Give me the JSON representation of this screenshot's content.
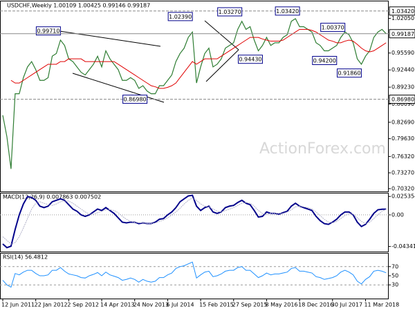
{
  "watermark": "ActionForex.com",
  "chart_data": [
    {
      "type": "line",
      "title": "USDCHF,Weekly 1.00109 1.00425 0.99146 0.99187",
      "categories": [
        "12 Jun 2011",
        null,
        null,
        null,
        null,
        null,
        null,
        null,
        "22 Jan 2012",
        null,
        null,
        null,
        null,
        null,
        null,
        null,
        "2 Sep 2012",
        null,
        null,
        null,
        null,
        null,
        null,
        null,
        "14 Apr 2013",
        null,
        null,
        null,
        null,
        null,
        null,
        null,
        "24 Nov 2013",
        null,
        null,
        null,
        null,
        null,
        null,
        null,
        "6 Jul 2014",
        null,
        null,
        null,
        null,
        null,
        null,
        null,
        "15 Feb 2015",
        null,
        null,
        null,
        null,
        null,
        null,
        null,
        "27 Sep 2015",
        null,
        null,
        null,
        null,
        null,
        null,
        null,
        "8 May 2016",
        null,
        null,
        null,
        null,
        null,
        null,
        null,
        "18 Dec 2016",
        null,
        null,
        null,
        null,
        null,
        null,
        null,
        "30 Jul 2017",
        null,
        null,
        null,
        null,
        null,
        null,
        null,
        "11 Mar 2018",
        null,
        null,
        null,
        null,
        null
      ],
      "series": [
        {
          "name": "USDCHF",
          "color": "#2e7d32",
          "values": [
            0.84,
            0.8,
            0.74,
            0.88,
            0.88,
            0.91,
            0.93,
            0.94,
            0.925,
            0.905,
            0.905,
            0.91,
            0.95,
            0.955,
            0.98,
            0.97,
            0.945,
            0.94,
            0.93,
            0.92,
            0.915,
            0.925,
            0.935,
            0.95,
            0.93,
            0.96,
            0.945,
            0.935,
            0.925,
            0.905,
            0.905,
            0.91,
            0.905,
            0.89,
            0.895,
            0.885,
            0.88,
            0.88,
            0.895,
            0.895,
            0.905,
            0.915,
            0.94,
            0.955,
            0.965,
            0.985,
            0.995,
            0.9,
            0.93,
            0.955,
            0.965,
            0.93,
            0.935,
            0.945,
            0.965,
            0.97,
            0.975,
            1.0,
            1.015,
            1.0,
            1.005,
            0.98,
            0.96,
            0.97,
            0.985,
            0.97,
            0.975,
            0.975,
            0.985,
            0.99,
            1.015,
            1.02,
            1.005,
            1.005,
            1.0,
            0.995,
            0.975,
            0.97,
            0.96,
            0.96,
            0.965,
            0.97,
            0.985,
            0.995,
            0.99,
            0.975,
            0.945,
            0.935,
            0.95,
            0.96,
            0.985,
            0.995,
            1.0,
            0.99187
          ]
        },
        {
          "name": "MA",
          "color": "#e00000",
          "values": [
            null,
            null,
            0.905,
            0.9,
            0.9,
            0.905,
            0.91,
            0.915,
            0.92,
            0.925,
            0.93,
            0.935,
            0.935,
            0.935,
            0.94,
            0.94,
            0.945,
            0.945,
            0.945,
            0.945,
            0.94,
            0.94,
            0.94,
            0.94,
            0.94,
            0.94,
            0.94,
            0.94,
            0.935,
            0.93,
            0.925,
            0.92,
            0.915,
            0.91,
            0.905,
            0.9,
            0.895,
            0.893,
            0.89,
            0.89,
            0.892,
            0.895,
            0.9,
            0.91,
            0.92,
            0.93,
            0.94,
            0.935,
            0.94,
            0.945,
            0.945,
            0.945,
            0.945,
            0.95,
            0.955,
            0.96,
            0.965,
            0.97,
            0.975,
            0.98,
            0.985,
            0.985,
            0.985,
            0.982,
            0.98,
            0.978,
            0.978,
            0.978,
            0.98,
            0.985,
            0.99,
            0.995,
            1.0,
            1.0,
            1.0,
            0.998,
            0.995,
            0.99,
            0.985,
            0.98,
            0.978,
            0.975,
            0.975,
            0.978,
            0.98,
            0.978,
            0.972,
            0.965,
            0.96,
            0.958,
            0.96,
            0.965,
            0.97,
            0.975
          ]
        }
      ],
      "ylim": [
        0.698,
        1.0534
      ],
      "yticks": [
        {
          "value": 0.7032,
          "label": "0.70320"
        },
        {
          "value": 0.7327,
          "label": "0.73270"
        },
        {
          "value": 0.7632,
          "label": "0.76320"
        },
        {
          "value": 0.7963,
          "label": "0.79630"
        },
        {
          "value": 0.8269,
          "label": "0.82690"
        },
        {
          "value": 0.8609,
          "label": "0.86090"
        },
        {
          "value": 0.8923,
          "label": "0.89230"
        },
        {
          "value": 0.9244,
          "label": "0.92440"
        },
        {
          "value": 0.9559,
          "label": "0.95590"
        },
        {
          "value": 1.0205,
          "label": "1.02050"
        }
      ],
      "annotations": [
        {
          "value": 0.9971,
          "label": "0.99710",
          "i": 14
        },
        {
          "value": 0.8698,
          "label": "0.86980",
          "i": 35
        },
        {
          "value": 1.0239,
          "label": "1.02390",
          "i": 46
        },
        {
          "value": 1.0327,
          "label": "1.03270",
          "i": 58
        },
        {
          "value": 0.9443,
          "label": "0.94430",
          "i": 63
        },
        {
          "value": 1.0342,
          "label": "1.03420",
          "i": 72
        },
        {
          "value": 0.942,
          "label": "0.94200",
          "i": 81
        },
        {
          "value": 1.0037,
          "label": "1.00370",
          "i": 83
        },
        {
          "value": 0.9186,
          "label": "0.91860",
          "i": 87
        }
      ],
      "hlines": [
        1.0342,
        0.8698
      ],
      "price_markers": [
        {
          "value": 1.0342,
          "label": "1.03420"
        },
        {
          "value": 0.99187,
          "label": "0.99187"
        },
        {
          "value": 0.8698,
          "label": "0.86980"
        }
      ]
    },
    {
      "type": "line",
      "title": "MACD(12,26,9) 0.007863 0.007502",
      "series": [
        {
          "name": "MACD",
          "color": "#00008b",
          "values": [
            -0.04,
            -0.045,
            -0.043,
            -0.02,
            0.0,
            0.015,
            0.025,
            0.024,
            0.02,
            0.012,
            0.01,
            0.012,
            0.018,
            0.02,
            0.022,
            0.02,
            0.014,
            0.008,
            0.005,
            0.0,
            -0.002,
            0.0,
            0.004,
            0.008,
            0.006,
            0.01,
            0.006,
            0.002,
            -0.004,
            -0.01,
            -0.011,
            -0.01,
            -0.01,
            -0.012,
            -0.011,
            -0.012,
            -0.012,
            -0.01,
            -0.006,
            -0.005,
            0.0,
            0.004,
            0.01,
            0.018,
            0.022,
            0.026,
            0.027,
            0.012,
            0.006,
            0.01,
            0.012,
            0.004,
            0.002,
            0.004,
            0.01,
            0.012,
            0.013,
            0.017,
            0.02,
            0.016,
            0.014,
            0.006,
            -0.003,
            -0.002,
            0.004,
            0.002,
            0.002,
            0.001,
            0.003,
            0.005,
            0.012,
            0.016,
            0.012,
            0.01,
            0.008,
            0.006,
            -0.002,
            -0.008,
            -0.012,
            -0.013,
            -0.01,
            -0.006,
            0.0,
            0.004,
            0.004,
            0.0,
            -0.01,
            -0.016,
            -0.013,
            -0.006,
            0.002,
            0.007,
            0.0078,
            0.007863
          ]
        },
        {
          "name": "Signal",
          "color": "#b0b0c8",
          "values": [
            -0.03,
            -0.035,
            -0.04,
            -0.038,
            -0.03,
            -0.018,
            -0.005,
            0.008,
            0.016,
            0.018,
            0.016,
            0.014,
            0.013,
            0.015,
            0.018,
            0.019,
            0.019,
            0.016,
            0.012,
            0.008,
            0.004,
            0.001,
            0.001,
            0.003,
            0.005,
            0.007,
            0.007,
            0.006,
            0.003,
            -0.002,
            -0.006,
            -0.009,
            -0.01,
            -0.011,
            -0.011,
            -0.012,
            -0.012,
            -0.011,
            -0.009,
            -0.007,
            -0.004,
            0.0,
            0.004,
            0.009,
            0.015,
            0.02,
            0.023,
            0.02,
            0.015,
            0.012,
            0.011,
            0.008,
            0.005,
            0.004,
            0.006,
            0.008,
            0.01,
            0.013,
            0.016,
            0.017,
            0.016,
            0.012,
            0.006,
            0.002,
            0.001,
            0.002,
            0.002,
            0.002,
            0.002,
            0.004,
            0.007,
            0.011,
            0.012,
            0.011,
            0.01,
            0.008,
            0.004,
            -0.001,
            -0.006,
            -0.01,
            -0.011,
            -0.009,
            -0.005,
            -0.001,
            0.002,
            0.001,
            -0.004,
            -0.009,
            -0.012,
            -0.01,
            -0.005,
            0.0,
            0.005,
            0.007502
          ]
        }
      ],
      "ylim": [
        -0.0504,
        0.0303
      ],
      "yticks": [
        0.025354,
        {
          "value": 0,
          "label": "0.00"
        },
        -0.043415
      ]
    },
    {
      "type": "line",
      "title": "RSI(14) 56.4812",
      "series": [
        {
          "name": "RSI",
          "color": "#1e90ff",
          "values": [
            40,
            30,
            25,
            55,
            52,
            58,
            62,
            62,
            55,
            50,
            50,
            52,
            62,
            62,
            68,
            60,
            54,
            52,
            50,
            46,
            45,
            50,
            53,
            57,
            50,
            58,
            52,
            49,
            46,
            40,
            42,
            45,
            42,
            36,
            42,
            38,
            36,
            38,
            46,
            46,
            52,
            56,
            66,
            70,
            72,
            76,
            80,
            45,
            52,
            58,
            60,
            48,
            50,
            54,
            60,
            62,
            62,
            68,
            70,
            62,
            62,
            54,
            46,
            50,
            56,
            52,
            54,
            54,
            56,
            58,
            66,
            68,
            60,
            60,
            58,
            56,
            48,
            46,
            42,
            44,
            46,
            50,
            58,
            62,
            58,
            52,
            38,
            32,
            42,
            48,
            60,
            62,
            60,
            56.4812
          ]
        }
      ],
      "ylim": [
        0,
        100
      ],
      "yticks": [
        30,
        50,
        70
      ],
      "levels": [
        30,
        70
      ]
    }
  ]
}
